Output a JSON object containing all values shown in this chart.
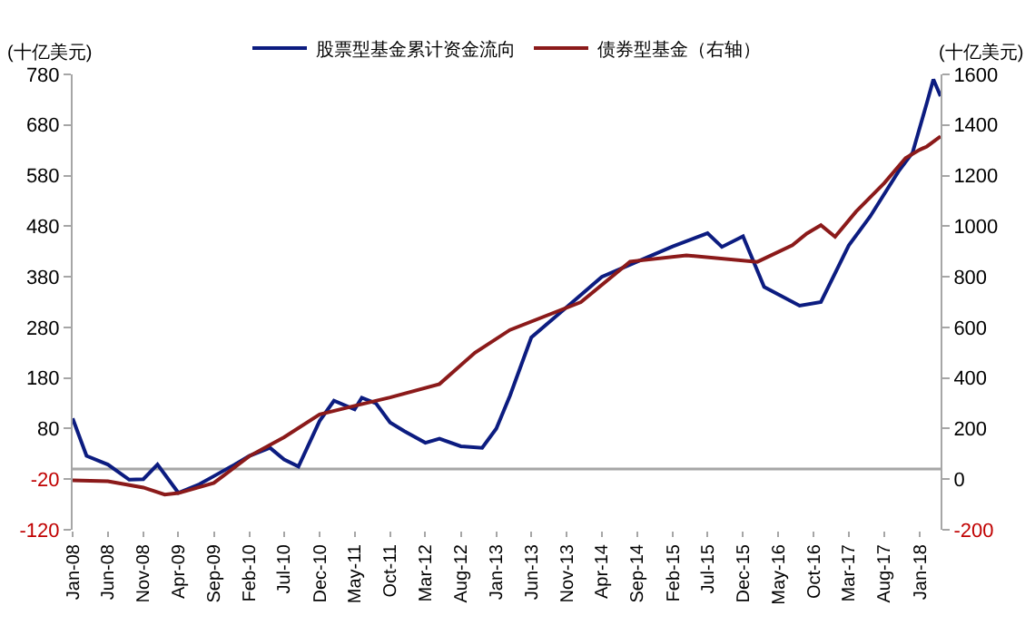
{
  "chart_data": {
    "type": "line",
    "legend": "top",
    "grid": false,
    "marker": "none",
    "line_style": "solid",
    "annotations": [
      "(十亿美元)",
      "(十亿美元)"
    ],
    "xlim": [
      "2008-01",
      "2018-04"
    ],
    "xticks": [
      {
        "value": "2008-01",
        "label": "Jan-08"
      },
      {
        "value": "2008-06",
        "label": "Jun-08"
      },
      {
        "value": "2008-11",
        "label": "Nov-08"
      },
      {
        "value": "2009-04",
        "label": "Apr-09"
      },
      {
        "value": "2009-09",
        "label": "Sep-09"
      },
      {
        "value": "2010-02",
        "label": "Feb-10"
      },
      {
        "value": "2010-07",
        "label": "Jul-10"
      },
      {
        "value": "2010-12",
        "label": "Dec-10"
      },
      {
        "value": "2011-05",
        "label": "May-11"
      },
      {
        "value": "2011-10",
        "label": "Oct-11"
      },
      {
        "value": "2012-03",
        "label": "Mar-12"
      },
      {
        "value": "2012-08",
        "label": "Aug-12"
      },
      {
        "value": "2013-01",
        "label": "Jan-13"
      },
      {
        "value": "2013-06",
        "label": "Jun-13"
      },
      {
        "value": "2013-11",
        "label": "Nov-13"
      },
      {
        "value": "2014-04",
        "label": "Apr-14"
      },
      {
        "value": "2014-09",
        "label": "Sep-14"
      },
      {
        "value": "2015-02",
        "label": "Feb-15"
      },
      {
        "value": "2015-07",
        "label": "Jul-15"
      },
      {
        "value": "2015-12",
        "label": "Dec-15"
      },
      {
        "value": "2016-05",
        "label": "May-16"
      },
      {
        "value": "2016-10",
        "label": "Oct-16"
      },
      {
        "value": "2017-03",
        "label": "Mar-17"
      },
      {
        "value": "2017-08",
        "label": "Aug-17"
      },
      {
        "value": "2018-01",
        "label": "Jan-18"
      }
    ],
    "ylim": [
      -120,
      780
    ],
    "yticks": [
      -120,
      -20,
      80,
      180,
      280,
      380,
      480,
      580,
      680,
      780
    ],
    "y2lim": [
      -200,
      1600
    ],
    "y2ticks": [
      -200,
      0,
      200,
      400,
      600,
      800,
      1000,
      1200,
      1400,
      1600
    ],
    "ref_lines": [
      {
        "axis": "y",
        "value": 0,
        "color": "#a6a6a6"
      }
    ],
    "series": [
      {
        "name": "股票型基金累计资金流向",
        "color": "#0c1c80",
        "x": [
          "2008-01",
          "2008-03",
          "2008-06",
          "2008-09",
          "2008-11",
          "2009-01",
          "2009-04",
          "2009-07",
          "2009-09",
          "2009-12",
          "2010-02",
          "2010-05",
          "2010-07",
          "2010-09",
          "2010-12",
          "2011-02",
          "2011-05",
          "2011-06",
          "2011-08",
          "2011-10",
          "2011-12",
          "2012-03",
          "2012-05",
          "2012-08",
          "2012-11",
          "2013-01",
          "2013-03",
          "2013-06",
          "2013-11",
          "2014-04",
          "2014-09",
          "2015-02",
          "2015-07",
          "2015-09",
          "2015-12",
          "2016-03",
          "2016-08",
          "2016-11",
          "2017-03",
          "2017-06",
          "2017-10",
          "2017-12",
          "2018-02",
          "2018-03",
          "2018-04"
        ],
        "values": [
          100,
          26,
          9,
          -21,
          -20,
          9,
          -47,
          -30,
          -14,
          9,
          26,
          42,
          19,
          5,
          95,
          135,
          118,
          141,
          130,
          92,
          75,
          52,
          60,
          45,
          42,
          80,
          145,
          260,
          320,
          380,
          410,
          440,
          466,
          439,
          460,
          360,
          323,
          330,
          442,
          499,
          588,
          625,
          724,
          770,
          737
        ]
      },
      {
        "name": "债券型基金（右轴）",
        "color": "#8b1a1a",
        "axis": "y2",
        "x": [
          "2008-01",
          "2008-06",
          "2008-11",
          "2009-02",
          "2009-04",
          "2009-09",
          "2010-02",
          "2010-07",
          "2010-12",
          "2011-05",
          "2011-10",
          "2012-05",
          "2012-10",
          "2013-03",
          "2014-01",
          "2014-08",
          "2015-04",
          "2016-02",
          "2016-07",
          "2016-09",
          "2016-11",
          "2017-01",
          "2017-04",
          "2017-08",
          "2017-11",
          "2018-01",
          "2018-02",
          "2018-04"
        ],
        "values": [
          -5,
          -8,
          -33,
          -61,
          -55,
          -15,
          91,
          166,
          256,
          290,
          323,
          376,
          500,
          590,
          700,
          860,
          885,
          859,
          925,
          971,
          1004,
          958,
          1057,
          1170,
          1269,
          1302,
          1315,
          1355
        ]
      }
    ]
  }
}
